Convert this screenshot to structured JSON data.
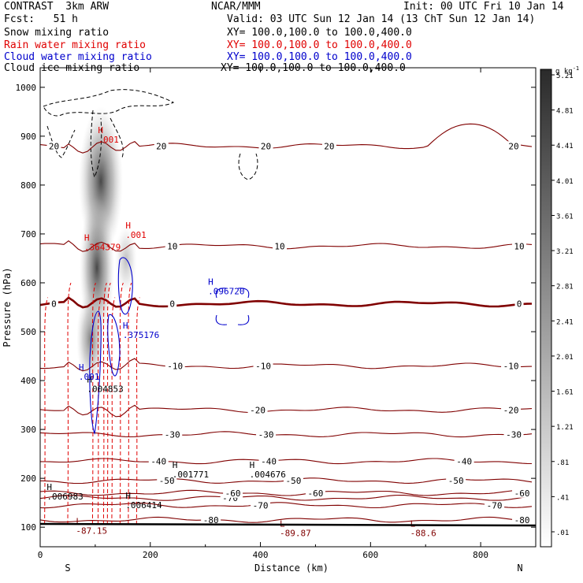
{
  "header": {
    "left_title": "CONTRAST  3km ARW",
    "center_title": "NCAR/MMM",
    "init": "Init: 00 UTC Fri 10 Jan 14",
    "fcst": "Fcst:   51 h",
    "valid": "Valid: 03 UTC Sun 12 Jan 14 (13 ChT Sun 12 Jan 14)",
    "fields": [
      {
        "label": "Snow mixing ratio",
        "xy": "XY= 100.0,100.0 to 100.0,400.0",
        "color": "#000000"
      },
      {
        "label": "Rain water mixing ratio",
        "xy": "XY= 100.0,100.0 to 100.0,400.0",
        "color": "#e00000"
      },
      {
        "label": "Cloud water mixing ratio",
        "xy": "XY= 100.0,100.0 to 100.0,400.0",
        "color": "#0000cc"
      },
      {
        "label": "Cloud ice mixing ratio",
        "xy": "XY= 100.0,100.0 to 100.0,400.0",
        "color": "#000000"
      }
    ]
  },
  "chart_data": {
    "type": "cross-section contour",
    "xlabel": "Distance (km)",
    "ylabel": "Pressure (hPa)",
    "xlim": [
      0,
      900
    ],
    "ylim": [
      1040,
      60
    ],
    "x_ticks": [
      0,
      200,
      400,
      600,
      800
    ],
    "y_ticks": [
      100,
      200,
      300,
      400,
      500,
      600,
      700,
      800,
      900,
      1000
    ],
    "endpoints": {
      "left": "S",
      "right": "N"
    },
    "colors": {
      "temp": "#800000",
      "rain": "#e00000",
      "cloud": "#0000cc",
      "ice": "#000000"
    },
    "temperature_contours": [
      {
        "p": 115,
        "labels": [
          {
            "x": 310,
            "text": "-80"
          },
          {
            "x": 875,
            "text": "-80"
          }
        ]
      },
      {
        "p": 145,
        "labels": [
          {
            "x": 400,
            "text": "-70"
          },
          {
            "x": 825,
            "text": "-70"
          }
        ]
      },
      {
        "p": 160,
        "labels": [
          {
            "x": 345,
            "text": "-70"
          }
        ]
      },
      {
        "p": 170,
        "labels": [
          {
            "x": 350,
            "text": "-60"
          },
          {
            "x": 500,
            "text": "-60"
          },
          {
            "x": 875,
            "text": "-60"
          }
        ]
      },
      {
        "p": 195,
        "labels": [
          {
            "x": 230,
            "text": "-50"
          },
          {
            "x": 460,
            "text": "-50"
          },
          {
            "x": 755,
            "text": "-50"
          }
        ]
      },
      {
        "p": 235,
        "labels": [
          {
            "x": 215,
            "text": "-40"
          },
          {
            "x": 415,
            "text": "-40"
          },
          {
            "x": 770,
            "text": "-40"
          }
        ]
      },
      {
        "p": 290,
        "labels": [
          {
            "x": 240,
            "text": "-30"
          },
          {
            "x": 410,
            "text": "-30"
          },
          {
            "x": 860,
            "text": "-30"
          }
        ]
      },
      {
        "p": 340,
        "labels": [
          {
            "x": 395,
            "text": "-20"
          },
          {
            "x": 855,
            "text": "-20"
          }
        ]
      },
      {
        "p": 430,
        "labels": [
          {
            "x": 245,
            "text": "-10"
          },
          {
            "x": 405,
            "text": "-10"
          },
          {
            "x": 855,
            "text": "-10"
          }
        ]
      },
      {
        "p": 557,
        "labels": [
          {
            "x": 25,
            "text": "0"
          },
          {
            "x": 240,
            "text": "0"
          },
          {
            "x": 870,
            "text": "0"
          }
        ],
        "bold": true
      },
      {
        "p": 675,
        "labels": [
          {
            "x": 240,
            "text": "10"
          },
          {
            "x": 435,
            "text": "10"
          },
          {
            "x": 870,
            "text": "10"
          }
        ]
      },
      {
        "p": 880,
        "labels": [
          {
            "x": 25,
            "text": "20"
          },
          {
            "x": 220,
            "text": "20"
          },
          {
            "x": 410,
            "text": "20"
          },
          {
            "x": 525,
            "text": "20"
          },
          {
            "x": 860,
            "text": "20"
          }
        ]
      }
    ],
    "extrema": [
      {
        "kind": "L",
        "x": 65,
        "p": 90,
        "value": "-87.15",
        "color": "#800000"
      },
      {
        "kind": "L",
        "x": 435,
        "p": 85,
        "value": "-89.87",
        "color": "#800000"
      },
      {
        "kind": "L",
        "x": 672,
        "p": 85,
        "value": "-88.6",
        "color": "#800000"
      },
      {
        "kind": "H",
        "x": 12,
        "p": 160,
        "value": ".006983",
        "color": "#000000"
      },
      {
        "kind": "H",
        "x": 155,
        "p": 142,
        "value": ".006414",
        "color": "#000000"
      },
      {
        "kind": "H",
        "x": 240,
        "p": 205,
        "value": ".001771",
        "color": "#000000"
      },
      {
        "kind": "H",
        "x": 380,
        "p": 205,
        "value": ".004676",
        "color": "#000000"
      },
      {
        "kind": "H",
        "x": 85,
        "p": 380,
        "value": ".004853",
        "color": "#000000"
      },
      {
        "kind": "H",
        "x": 70,
        "p": 405,
        "value": ".001",
        "color": "#0000cc"
      },
      {
        "kind": "H",
        "x": 150,
        "p": 490,
        "value": ".375176",
        "color": "#0000cc"
      },
      {
        "kind": "H",
        "x": 305,
        "p": 580,
        "value": ".096720",
        "color": "#0000cc"
      },
      {
        "kind": "H",
        "x": 80,
        "p": 670,
        "value": ".364379",
        "color": "#e00000"
      },
      {
        "kind": "H",
        "x": 155,
        "p": 695,
        "value": ".001",
        "color": "#e00000"
      },
      {
        "kind": "H",
        "x": 105,
        "p": 890,
        "value": ".001",
        "color": "#e00000"
      }
    ],
    "colorbar": {
      "unit": "g kg",
      "unit_exp": "-1",
      "levels": [
        ".01",
        ".41",
        ".81",
        "1.21",
        "1.61",
        "2.01",
        "2.41",
        "2.81",
        "3.21",
        "3.61",
        "4.01",
        "4.41",
        "4.81",
        "5.21"
      ]
    }
  }
}
